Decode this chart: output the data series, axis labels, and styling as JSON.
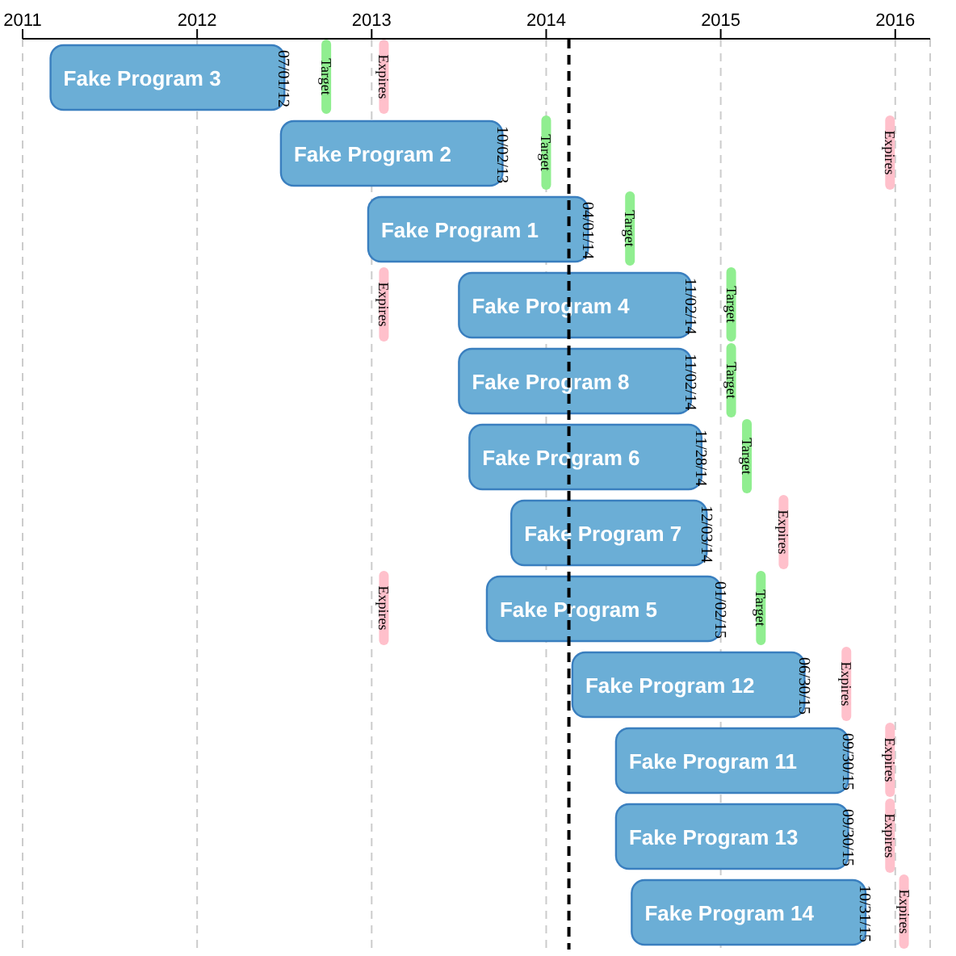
{
  "chart_data": {
    "type": "bar",
    "orientation": "horizontal",
    "categories": [
      "Fake Program 3",
      "Fake Program 2",
      "Fake Program 1",
      "Fake Program 4",
      "Fake Program 8",
      "Fake Program 6",
      "Fake Program 7",
      "Fake Program 5",
      "Fake Program 12",
      "Fake Program 11",
      "Fake Program 13",
      "Fake Program 14"
    ],
    "series": [
      {
        "color": "#6baed6",
        "base": [
          2011.16,
          2012.48,
          2012.98,
          2013.5,
          2013.5,
          2013.56,
          2013.8,
          2013.66,
          2014.15,
          2014.4,
          2014.4,
          2014.49
        ],
        "values": [
          1.34,
          1.27,
          1.26,
          1.33,
          1.33,
          1.33,
          1.12,
          1.34,
          1.33,
          1.33,
          1.33,
          1.34
        ],
        "value_labels": [
          "07/01/12",
          "10/02/13",
          "04/01/14",
          "11/02/14",
          "11/02/14",
          "11/28/14",
          "12/03/14",
          "01/02/15",
          "06/30/15",
          "09/30/15",
          "09/30/15",
          "10/31/15"
        ]
      },
      {
        "type": "scatter",
        "name": "Target",
        "color": "#90ee90",
        "values": [
          2012.74,
          2014.0,
          2014.48,
          2015.06,
          2015.06,
          2015.15,
          null,
          2015.23,
          null,
          null,
          null,
          null
        ]
      },
      {
        "type": "scatter",
        "name": "Expires",
        "color": "#ffc0cb",
        "values": [
          2013.07,
          2015.97,
          null,
          2013.07,
          null,
          null,
          2015.36,
          2013.07,
          2015.72,
          2015.97,
          2015.97,
          2016.05
        ]
      }
    ],
    "xlim": [
      2011,
      2016.2
    ],
    "xticks": [
      2011,
      2012,
      2013,
      2014,
      2015,
      2016
    ],
    "grid": "x",
    "tick_labels": "x",
    "ref_lines": [
      {
        "axis": "x",
        "value": 2014.13,
        "color": "#000000",
        "line_style": "dashed"
      }
    ]
  }
}
